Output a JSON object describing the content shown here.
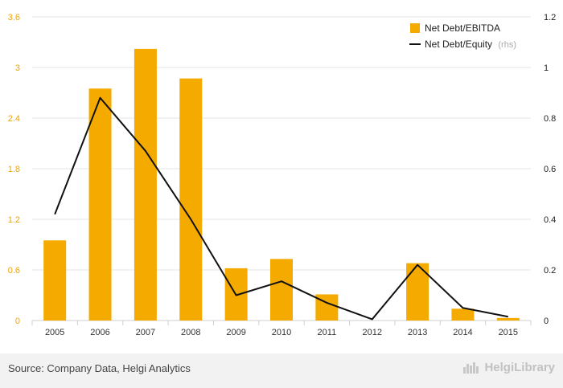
{
  "chart_data": {
    "type": "bar",
    "categories": [
      "2005",
      "2006",
      "2007",
      "2008",
      "2009",
      "2010",
      "2011",
      "2012",
      "2013",
      "2014",
      "2015"
    ],
    "series": [
      {
        "name": "Net Debt/EBITDA",
        "type": "bar",
        "axis": "left",
        "color": "#f5aa00",
        "values": [
          0.95,
          2.75,
          3.22,
          2.87,
          0.62,
          0.73,
          0.31,
          0.0,
          0.68,
          0.14,
          0.03
        ]
      },
      {
        "name": "Net Debt/Equity",
        "type": "line",
        "axis": "right",
        "color": "#111111",
        "values": [
          0.42,
          0.88,
          0.67,
          0.4,
          0.1,
          0.155,
          0.07,
          0.005,
          0.22,
          0.05,
          0.015
        ]
      }
    ],
    "y_left": {
      "min": 0,
      "max": 3.6,
      "ticks": [
        "0",
        "0.6",
        "1.2",
        "1.8",
        "2.4",
        "3",
        "3.6"
      ],
      "color": "#f0a500"
    },
    "y_right": {
      "min": 0,
      "max": 1.2,
      "ticks": [
        "0",
        "0.2",
        "0.4",
        "0.6",
        "0.8",
        "1",
        "1.2"
      ]
    },
    "legend": {
      "position": "top-right",
      "rhs_note": "(rhs)"
    },
    "grid": true
  },
  "footer": {
    "source": "Source: Company Data, Helgi Analytics",
    "brand": "HelgiLibrary"
  }
}
